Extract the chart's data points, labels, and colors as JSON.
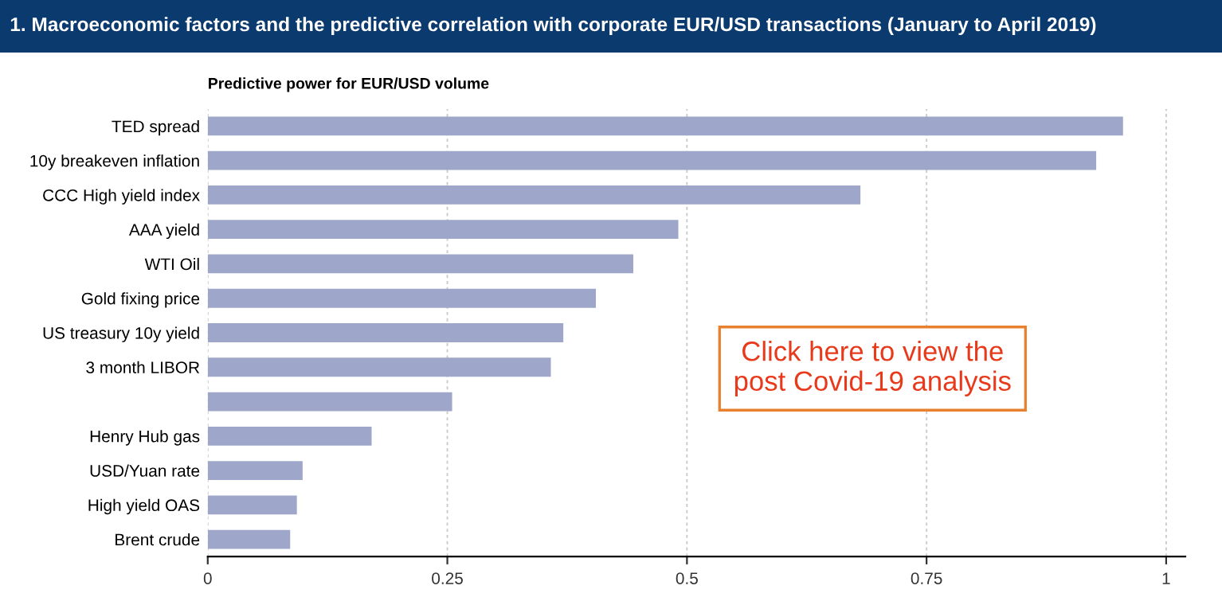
{
  "chart_data": {
    "type": "bar",
    "orientation": "horizontal",
    "title": "1. Macroeconomic factors and the predictive correlation with corporate EUR/USD transactions (January to April 2019)",
    "subtitle": "Predictive power for EUR/USD volume",
    "categories": [
      "TED spread",
      "10y breakeven inflation",
      "CCC High yield index",
      "AAA yield",
      "WTI Oil",
      "Gold fixing price",
      "US treasury 10y yield",
      "3 month LIBOR",
      null,
      "Henry Hub gas",
      "USD/Yuan rate",
      "High yield OAS",
      "Brent crude"
    ],
    "values": [
      0.955,
      0.927,
      0.681,
      0.491,
      0.444,
      0.405,
      0.371,
      0.358,
      0.255,
      0.171,
      0.099,
      0.093,
      0.086
    ],
    "color": "#9ea7c9",
    "xlim": [
      0,
      1.02
    ],
    "xticks": [
      0,
      0.25,
      0.5,
      0.75,
      1
    ],
    "grid": "x",
    "annotations": [
      "Click here to view the post Covid-19 analysis"
    ]
  }
}
